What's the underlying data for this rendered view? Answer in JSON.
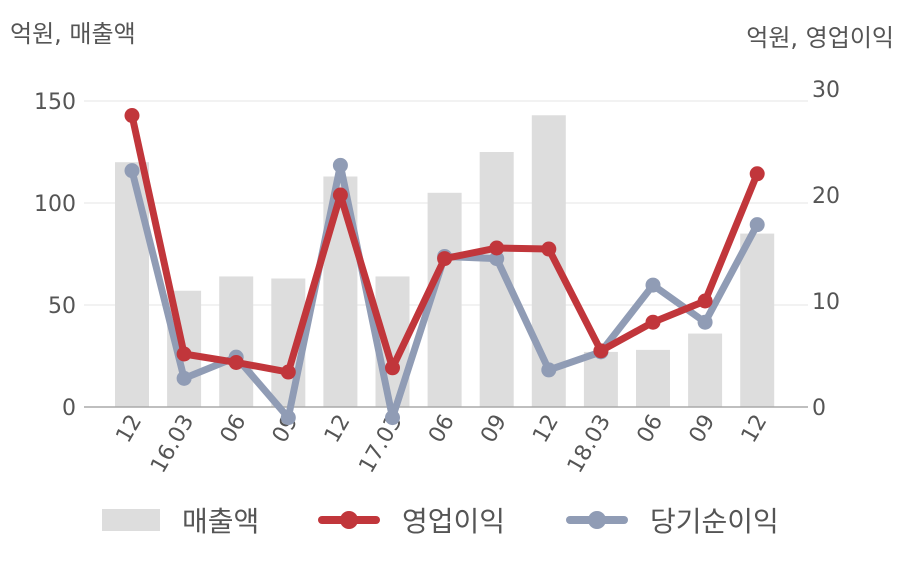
{
  "chart_data": {
    "type": "bar+line",
    "left_axis_label": "억원, 매출액",
    "right_axis_label": "억원, 영업이익",
    "categories": [
      "12",
      "16.03",
      "06",
      "09",
      "12",
      "17.03",
      "06",
      "09",
      "12",
      "18.03",
      "06",
      "09",
      "12"
    ],
    "y_left": {
      "min": 0,
      "max": 150,
      "ticks": [
        0,
        50,
        100,
        150
      ]
    },
    "y_right": {
      "min": 0,
      "max": 30,
      "ticks": [
        0,
        10,
        20,
        30
      ]
    },
    "grid": true,
    "legend_position": "bottom",
    "series": [
      {
        "name": "매출액",
        "type": "bar",
        "axis": "left",
        "color": "#dddddd",
        "values": [
          120,
          57,
          64,
          63,
          113,
          64,
          105,
          125,
          143,
          27,
          28,
          36,
          85
        ]
      },
      {
        "name": "영업이익",
        "type": "line",
        "axis": "right",
        "color": "#c1363b",
        "values": [
          27.5,
          5.0,
          4.2,
          3.3,
          20.0,
          3.7,
          14.0,
          15.0,
          14.9,
          5.3,
          8.0,
          10.0,
          22.0
        ]
      },
      {
        "name": "당기순이익",
        "type": "line",
        "axis": "right",
        "color": "#909cb5",
        "values": [
          22.3,
          2.7,
          4.7,
          -1.0,
          22.8,
          -1.0,
          14.2,
          14.0,
          3.5,
          5.2,
          11.5,
          8.0,
          17.2
        ]
      }
    ]
  }
}
